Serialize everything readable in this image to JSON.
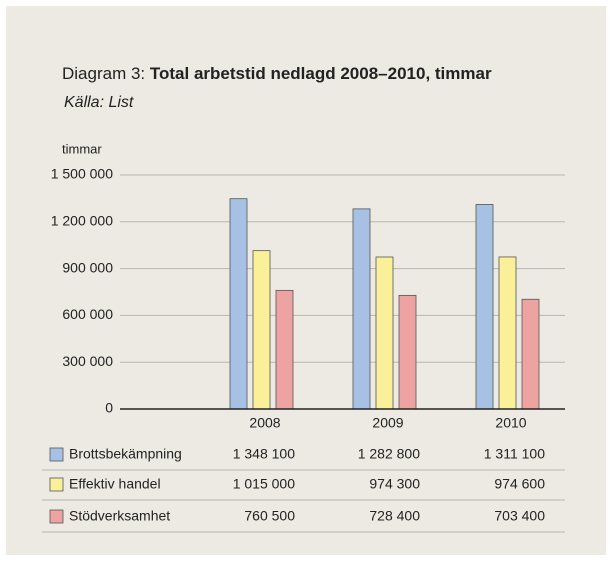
{
  "chart_data": {
    "type": "bar",
    "label": "Diagram 3:",
    "title": "Total arbetstid nedlagd 2008–2010, timmar",
    "subtitle": "Källa: List",
    "y_label": "timmar",
    "categories": [
      "2008",
      "2009",
      "2010"
    ],
    "series": [
      {
        "name": "Brottsbekämpning",
        "color": "#a7c1e4",
        "values": [
          1348100,
          1282800,
          1311100
        ],
        "value_labels": [
          "1 348 100",
          "1 282 800",
          "1 311 100"
        ]
      },
      {
        "name": "Effektiv handel",
        "color": "#fbf09a",
        "values": [
          1015000,
          974300,
          974600
        ],
        "value_labels": [
          "1 015 000",
          "974 300",
          "974 600"
        ]
      },
      {
        "name": "Stödverksamhet",
        "color": "#eea3a3",
        "values": [
          760500,
          728400,
          703400
        ],
        "value_labels": [
          "760 500",
          "728 400",
          "703 400"
        ]
      }
    ],
    "ylim": [
      0,
      1500000
    ],
    "yticks": [
      0,
      {
        "value": 300000,
        "label": "300 000"
      },
      {
        "value": 600000,
        "label": "600 000"
      },
      {
        "value": 900000,
        "label": "900 000"
      },
      {
        "value": 1200000,
        "label": "1 200 000"
      },
      {
        "value": 1500000,
        "label": "1 500 000"
      }
    ],
    "grid": true
  }
}
